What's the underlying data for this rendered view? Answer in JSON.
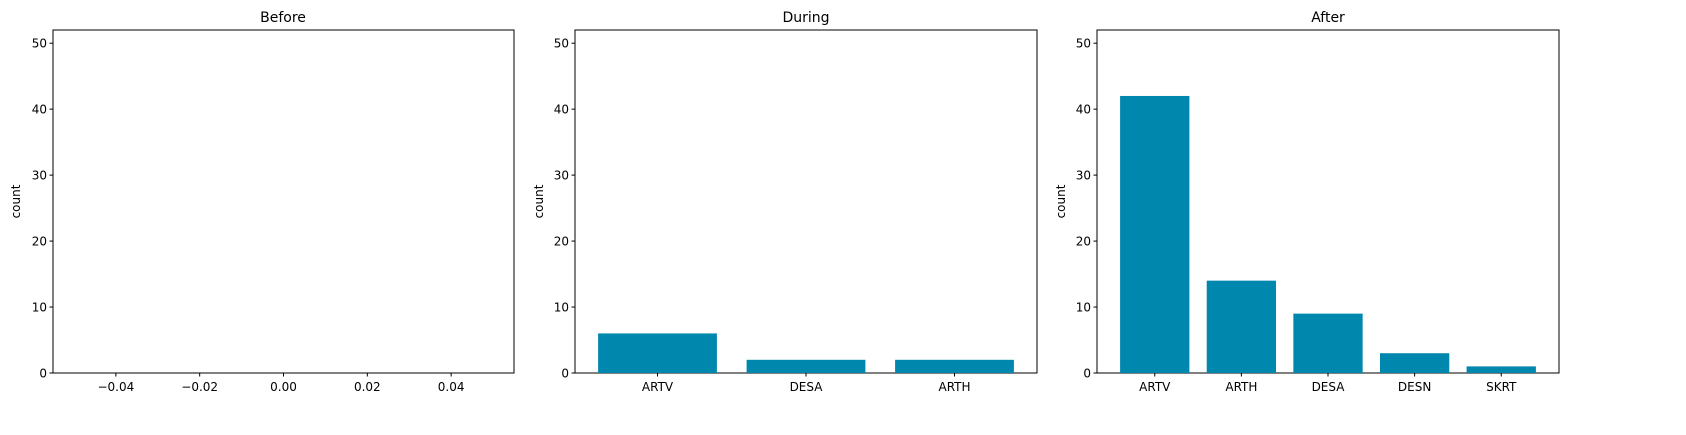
{
  "chart_data": [
    {
      "type": "bar",
      "title": "Before",
      "xlabel": "",
      "ylabel": "count",
      "categories": [],
      "values": [],
      "xlim": [
        -0.055,
        0.055
      ],
      "xticks": [
        -0.04,
        -0.02,
        0.0,
        0.02,
        0.04
      ],
      "xtick_labels": [
        "−0.04",
        "−0.02",
        "0.00",
        "0.02",
        "0.04"
      ],
      "ylim": [
        0,
        52
      ],
      "yticks": [
        0,
        10,
        20,
        30,
        40,
        50
      ],
      "grid": false,
      "color": "#0087ad"
    },
    {
      "type": "bar",
      "title": "During",
      "xlabel": "",
      "ylabel": "count",
      "categories": [
        "ARTV",
        "DESA",
        "ARTH"
      ],
      "values": [
        6,
        2,
        2
      ],
      "ylim": [
        0,
        52
      ],
      "yticks": [
        0,
        10,
        20,
        30,
        40,
        50
      ],
      "grid": false,
      "color": "#0087ad"
    },
    {
      "type": "bar",
      "title": "After",
      "xlabel": "",
      "ylabel": "count",
      "categories": [
        "ARTV",
        "ARTH",
        "DESA",
        "DESN",
        "SKRT"
      ],
      "values": [
        42,
        14,
        9,
        3,
        1
      ],
      "ylim": [
        0,
        52
      ],
      "yticks": [
        0,
        10,
        20,
        30,
        40,
        50
      ],
      "grid": false,
      "color": "#0087ad"
    }
  ]
}
